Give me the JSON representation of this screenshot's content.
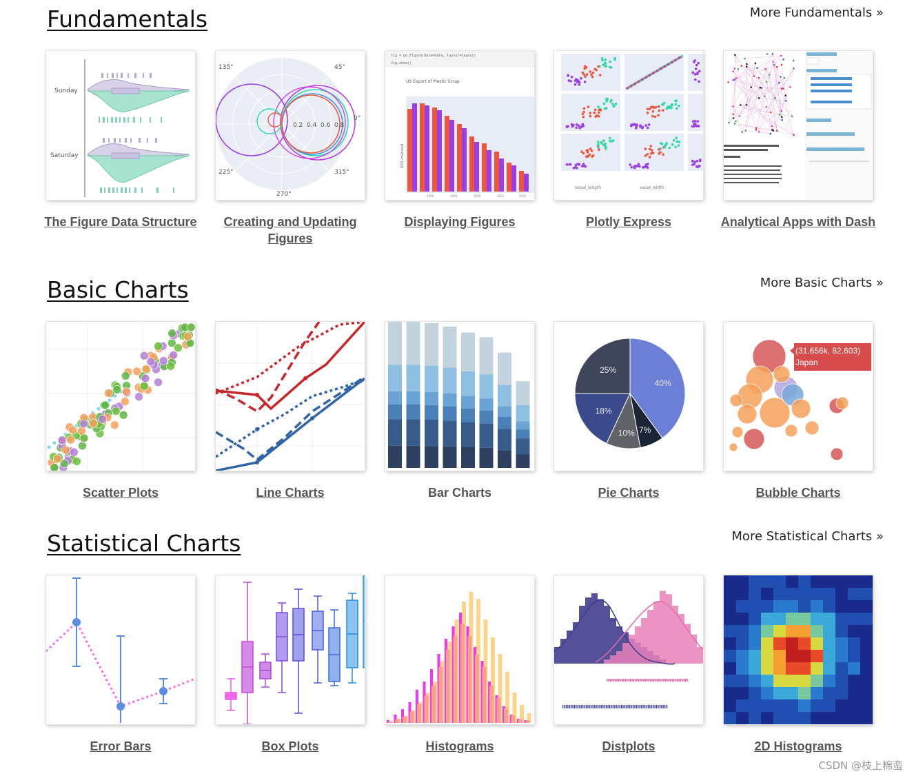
{
  "sections": [
    {
      "title": "Fundamentals",
      "more": "More Fundamentals »",
      "cards": [
        {
          "label": "The Figure Data Structure"
        },
        {
          "label": "Creating and Updating Figures"
        },
        {
          "label": "Displaying Figures"
        },
        {
          "label": "Plotly Express"
        },
        {
          "label": "Analytical Apps with Dash"
        }
      ]
    },
    {
      "title": "Basic Charts",
      "more": "More Basic Charts »",
      "cards": [
        {
          "label": "Scatter Plots"
        },
        {
          "label": "Line Charts"
        },
        {
          "label": "Bar Charts"
        },
        {
          "label": "Pie Charts"
        },
        {
          "label": "Bubble Charts"
        }
      ]
    },
    {
      "title": "Statistical Charts",
      "more": "More Statistical Charts »",
      "cards": [
        {
          "label": "Error Bars"
        },
        {
          "label": "Box Plots"
        },
        {
          "label": "Histograms"
        },
        {
          "label": "Distplots"
        },
        {
          "label": "2D Histograms"
        }
      ]
    }
  ],
  "thumbs": {
    "violin": {
      "cat_top": "Sunday",
      "cat_bottom": "Saturday"
    },
    "polar": {
      "angles": [
        "135°",
        "45°",
        "0°",
        "225°",
        "315°",
        "270°"
      ],
      "radial": [
        "0.2",
        "0.4",
        "0.6",
        "0.8"
      ]
    },
    "display": {
      "code1": "fig = go.Figure(data=data, layout=layout)",
      "code2": "fig.show()",
      "title": "US Export of Plastic Scrap",
      "ylabel": "USD (millions)",
      "years": [
        "1996",
        "1998",
        "2000",
        "2002",
        "2004"
      ]
    },
    "express": {
      "xlabels": [
        "sepal_length",
        "sepal_width"
      ]
    },
    "pie": {
      "slices": [
        {
          "label": "40%",
          "value": 40,
          "color": "#6b7fd7"
        },
        {
          "label": "7%",
          "value": 7,
          "color": "#1c2536"
        },
        {
          "label": "10%",
          "value": 10,
          "color": "#5f6266"
        },
        {
          "label": "18%",
          "value": 18,
          "color": "#3a4a8a"
        },
        {
          "label": "25%",
          "value": 25,
          "color": "#3e4559"
        }
      ]
    },
    "bubble": {
      "tooltip_value": "(31.656k, 82.603)",
      "tooltip_name": "Japan"
    }
  },
  "watermark": "CSDN @枝上棉蛮"
}
